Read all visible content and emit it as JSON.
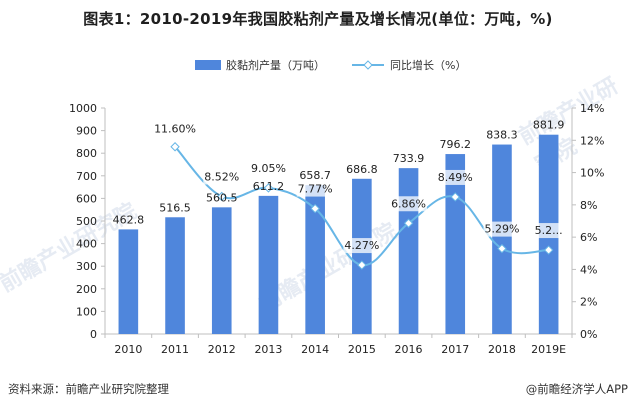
{
  "header": {
    "title": "图表1：2010-2019年我国胶粘剂产量及增长情况(单位：万吨，%)"
  },
  "footer": {
    "source": "资料来源：前瞻产业研究院整理",
    "brand": "@前瞻经济学人APP"
  },
  "watermark": {
    "text": "前瞻产业研究院"
  },
  "colors": {
    "bar": "#4f86dc",
    "line": "#67b6e6",
    "axis": "#bfbfbf",
    "grid": "#e5e5e5"
  },
  "chart_data": {
    "type": "bar",
    "title": "图表1：2010-2019年我国胶粘剂产量及增长情况(单位：万吨，%)",
    "categories": [
      "2010",
      "2011",
      "2012",
      "2013",
      "2014",
      "2015",
      "2016",
      "2017",
      "2018",
      "2019E"
    ],
    "series": [
      {
        "name": "胶黏剂产量（万吨）",
        "type": "bar",
        "axis": "left",
        "values": [
          462.8,
          516.5,
          560.5,
          611.2,
          658.7,
          686.8,
          733.9,
          796.2,
          838.3,
          881.9
        ],
        "labels": [
          "462.8",
          "516.5",
          "560.5",
          "611.2",
          "658.7",
          "686.8",
          "733.9",
          "796.2",
          "838.3",
          "881.9"
        ]
      },
      {
        "name": "同比增长（%）",
        "type": "line",
        "axis": "right",
        "values": [
          null,
          11.6,
          8.52,
          9.05,
          7.77,
          4.27,
          6.86,
          8.49,
          5.29,
          5.2
        ],
        "labels": [
          "",
          "11.60%",
          "8.52%",
          "9.05%",
          "7.77%",
          "4.27%",
          "6.86%",
          "8.49%",
          "5.29%",
          "5.2..."
        ]
      }
    ],
    "ylim_left": [
      0,
      1000
    ],
    "ylim_right": [
      0,
      14
    ],
    "yticks_left": [
      "0",
      "100",
      "200",
      "300",
      "400",
      "500",
      "600",
      "700",
      "800",
      "900",
      "1000"
    ],
    "yticks_right": [
      "0%",
      "2%",
      "4%",
      "6%",
      "8%",
      "10%",
      "12%",
      "14%"
    ],
    "xlabel": "",
    "ylabel": "",
    "legend_position": "top-center",
    "grid": false
  }
}
